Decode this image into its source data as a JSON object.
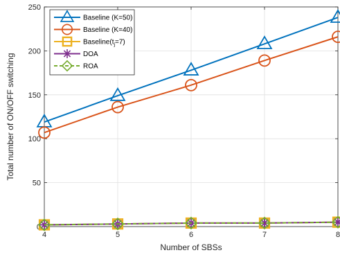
{
  "chart_data": {
    "type": "line",
    "xlabel": "Number of SBSs",
    "ylabel": "Total number of ON/OFF switching",
    "x": [
      4,
      5,
      6,
      7,
      8
    ],
    "xlim": [
      4,
      8
    ],
    "ylim": [
      0,
      250
    ],
    "xticks": [
      "4",
      "5",
      "6",
      "7",
      "8"
    ],
    "yticks": [
      "0",
      "50",
      "100",
      "150",
      "200",
      "250"
    ],
    "grid": true,
    "legend_position": "top-left",
    "series": [
      {
        "name": "Baseline (K=50)",
        "values": [
          119,
          149,
          178,
          208,
          238
        ],
        "color": "#0072BD",
        "marker": "triangle"
      },
      {
        "name": "Baseline (K=40)",
        "values": [
          107,
          136,
          161,
          189,
          216
        ],
        "color": "#D95319",
        "marker": "circle"
      },
      {
        "name": "Baseline(t_j=7)",
        "values": [
          2,
          3,
          4,
          4,
          5
        ],
        "color": "#EDB120",
        "marker": "square"
      },
      {
        "name": "DOA",
        "values": [
          2,
          3,
          4,
          4,
          5
        ],
        "color": "#7E2F8E",
        "marker": "asterisk"
      },
      {
        "name": "ROA",
        "values": [
          2,
          3,
          4,
          4,
          5
        ],
        "color": "#77AC30",
        "marker": "diamond"
      }
    ]
  }
}
